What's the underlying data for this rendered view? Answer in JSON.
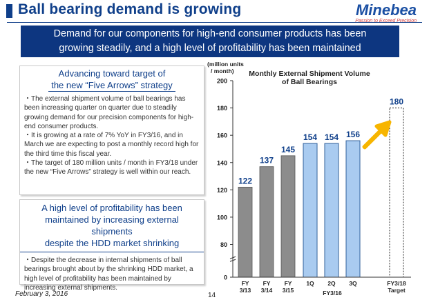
{
  "header": {
    "title": "Ball bearing demand is growing",
    "logo_name": "Minebea",
    "logo_tagline": "Passion to Exceed Precision"
  },
  "banner": {
    "line1": "Demand for our components for high-end consumer products has been",
    "line2": "growing steadily, and a high level of profitability has been maintained"
  },
  "panel_a": {
    "heading_line1": "Advancing toward target of",
    "heading_line2": "the new “Five Arrows” strategy",
    "paragraphs": [
      "・The external shipment volume of ball bearings has been increasing quarter on quarter due to steadily growing demand for our precision components for high-end consumer products.",
      "・It is growing at a rate of 7% YoY in FY3/16, and in March we are expecting to post a monthly record high for the third time this fiscal year.",
      "・The target of 180 million units / month in FY3/18 under the new “Five Arrows” strategy is well within our reach."
    ]
  },
  "panel_b": {
    "heading_line1": "A high level of profitability has been",
    "heading_line2": "maintained by increasing external shipments",
    "heading_line3": "despite the HDD market shrinking",
    "paragraph": "・Despite the decrease in internal shipments of ball bearings brought about by the shrinking HDD market, a high level of profitability has been maintained by increasing external shipments."
  },
  "footer": {
    "date": "February 3, 2016",
    "page": "14"
  },
  "chart_data": {
    "type": "bar",
    "title_line1": "Monthly External Shipment Volume",
    "title_line2": "of Ball Bearings",
    "ylabel_line1": "(million units",
    "ylabel_line2": "/ month)",
    "ylim": [
      0,
      200
    ],
    "yticks": [
      "0",
      "80",
      "100",
      "120",
      "140",
      "160",
      "180",
      "200"
    ],
    "group_label": "FY3/16",
    "categories": [
      {
        "line1": "FY",
        "line2": "3/13"
      },
      {
        "line1": "FY",
        "line2": "3/14"
      },
      {
        "line1": "FY",
        "line2": "3/15"
      },
      {
        "line1": "1Q",
        "line2": ""
      },
      {
        "line1": "2Q",
        "line2": ""
      },
      {
        "line1": "3Q",
        "line2": ""
      },
      {
        "line1": "FY3/18",
        "line2": "Target"
      }
    ],
    "values": [
      122,
      137,
      145,
      154,
      154,
      156,
      180
    ],
    "value_labels": [
      "122",
      "137",
      "145",
      "154",
      "154",
      "156",
      "180"
    ],
    "bar_styles": [
      "historical",
      "historical",
      "historical",
      "quarter",
      "quarter",
      "quarter",
      "target"
    ],
    "colors": {
      "historical": "#8c8c8c",
      "quarter": "#a9cbf0",
      "target": "#ffffff",
      "arrow": "#f7b500",
      "value_label": "#0f3f8a"
    }
  }
}
